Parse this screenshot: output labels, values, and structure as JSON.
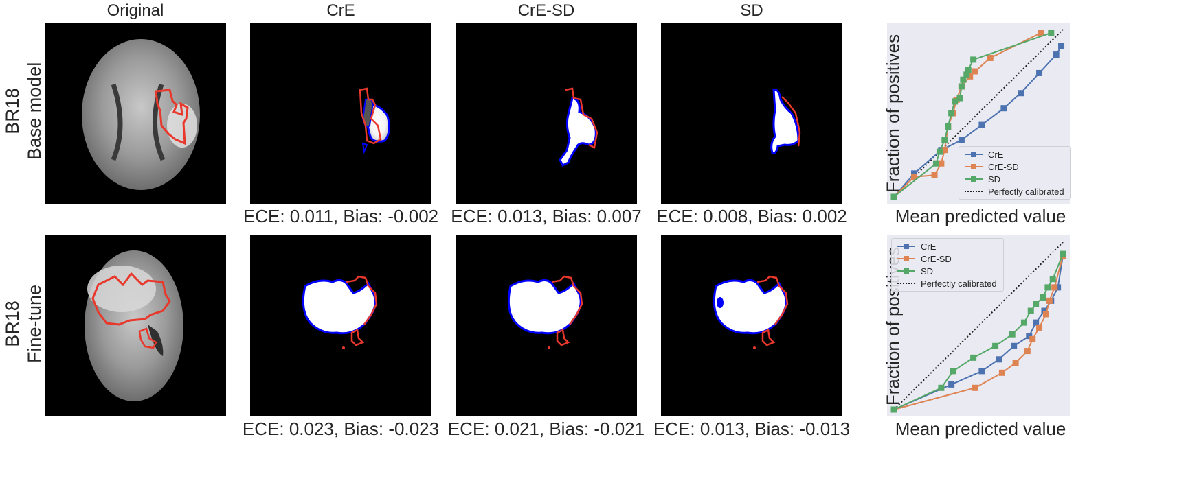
{
  "columns": {
    "original": "Original",
    "cre": "CrE",
    "cresd": "CrE-SD",
    "sd": "SD"
  },
  "rows": [
    {
      "label_line1": "BR18",
      "label_line2": "Base model",
      "captions": {
        "cre": "ECE: 0.011, Bias: -0.002",
        "cresd": "ECE: 0.013, Bias: 0.007",
        "sd": "ECE: 0.008, Bias: 0.002"
      }
    },
    {
      "label_line1": "BR18",
      "label_line2": "Fine-tune",
      "captions": {
        "cre": "ECE: 0.023, Bias: -0.023",
        "cresd": "ECE: 0.021, Bias: -0.021",
        "sd": "ECE: 0.013, Bias: -0.013"
      }
    }
  ],
  "colors": {
    "cre": "#4c72b0",
    "cresd": "#dd8452",
    "sd": "#55a868",
    "prediction_contour": "#0000ff",
    "ground_truth_contour": "#e8382c",
    "plot_background": "#eaeaf2"
  },
  "chart_data": [
    {
      "type": "line",
      "title": "",
      "xlabel": "Mean predicted value",
      "ylabel": "Fraction of positives",
      "xlim": [
        0,
        1
      ],
      "ylim": [
        0,
        1
      ],
      "grid": false,
      "legend_position": "lower-right",
      "reference_line": "Perfectly calibrated",
      "series": [
        {
          "name": "CrE",
          "x": [
            0.0,
            0.12,
            0.28,
            0.4,
            0.52,
            0.65,
            0.75,
            0.86,
            0.96,
            0.99
          ],
          "y": [
            0.0,
            0.14,
            0.28,
            0.34,
            0.43,
            0.53,
            0.62,
            0.74,
            0.85,
            0.9
          ]
        },
        {
          "name": "CrE-SD",
          "x": [
            0.0,
            0.12,
            0.24,
            0.28,
            0.3,
            0.32,
            0.35,
            0.37,
            0.4,
            0.45,
            0.48,
            0.57,
            0.87
          ],
          "y": [
            0.0,
            0.12,
            0.13,
            0.2,
            0.28,
            0.42,
            0.5,
            0.58,
            0.66,
            0.72,
            0.75,
            0.83,
            0.98
          ]
        },
        {
          "name": "SD",
          "x": [
            0.0,
            0.25,
            0.27,
            0.3,
            0.32,
            0.34,
            0.36,
            0.39,
            0.4,
            0.41,
            0.43,
            0.44,
            0.47,
            0.93
          ],
          "y": [
            0.0,
            0.2,
            0.27,
            0.34,
            0.42,
            0.5,
            0.57,
            0.59,
            0.66,
            0.7,
            0.73,
            0.76,
            0.82,
            0.98
          ]
        }
      ]
    },
    {
      "type": "line",
      "title": "",
      "xlabel": "Mean predicted value",
      "ylabel": "Fraction of positives",
      "xlim": [
        0,
        1
      ],
      "ylim": [
        0,
        1
      ],
      "grid": false,
      "legend_position": "upper-left",
      "reference_line": "Perfectly calibrated",
      "series": [
        {
          "name": "CrE",
          "x": [
            0.0,
            0.34,
            0.52,
            0.62,
            0.71,
            0.8,
            0.84,
            0.89,
            0.93,
            0.97,
            1.0
          ],
          "y": [
            0.0,
            0.15,
            0.23,
            0.3,
            0.38,
            0.44,
            0.52,
            0.59,
            0.65,
            0.73,
            0.92
          ]
        },
        {
          "name": "CrE-SD",
          "x": [
            0.0,
            0.48,
            0.64,
            0.72,
            0.79,
            0.82,
            0.86,
            0.9,
            0.92,
            0.95,
            1.0
          ],
          "y": [
            0.0,
            0.13,
            0.22,
            0.28,
            0.35,
            0.42,
            0.49,
            0.57,
            0.65,
            0.73,
            0.92
          ]
        },
        {
          "name": "SD",
          "x": [
            0.0,
            0.28,
            0.35,
            0.47,
            0.6,
            0.7,
            0.77,
            0.81,
            0.84,
            0.88,
            0.91,
            0.94,
            1.0
          ],
          "y": [
            0.0,
            0.13,
            0.23,
            0.31,
            0.38,
            0.45,
            0.52,
            0.59,
            0.63,
            0.67,
            0.73,
            0.78,
            0.93
          ]
        }
      ]
    }
  ]
}
